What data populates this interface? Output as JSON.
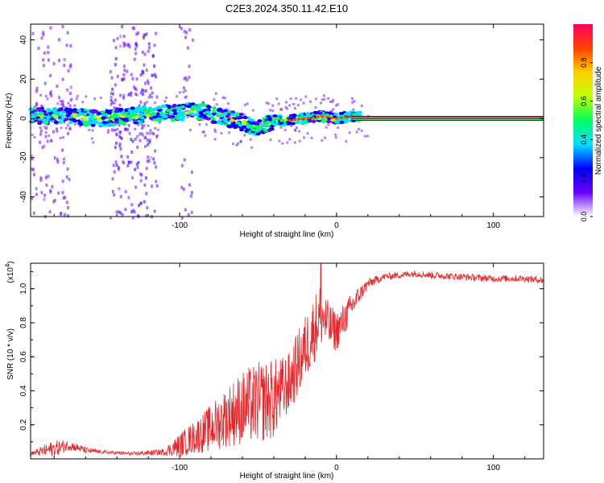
{
  "title": "C2E3.2024.350.11.42.E10",
  "chart_data": [
    {
      "type": "heatmap",
      "title": "C2E3.2024.350.11.42.E10",
      "xlabel": "Height of straight line (km)",
      "ylabel": "Frequency (Hz)",
      "xlim": [
        -195,
        132
      ],
      "ylim": [
        -50,
        48
      ],
      "xticks": [
        -100,
        0,
        100
      ],
      "yticks": [
        -40,
        -20,
        0,
        20,
        40
      ],
      "trace_center_hz": [
        {
          "x": -195,
          "y": 1
        },
        {
          "x": -170,
          "y": 1
        },
        {
          "x": -150,
          "y": 0
        },
        {
          "x": -120,
          "y": 2
        },
        {
          "x": -100,
          "y": 3
        },
        {
          "x": -90,
          "y": 4
        },
        {
          "x": -80,
          "y": 2
        },
        {
          "x": -70,
          "y": 0
        },
        {
          "x": -60,
          "y": -2
        },
        {
          "x": -50,
          "y": -5
        },
        {
          "x": -45,
          "y": -3
        },
        {
          "x": -40,
          "y": -1
        },
        {
          "x": -30,
          "y": -1
        },
        {
          "x": -20,
          "y": 0
        },
        {
          "x": -10,
          "y": 1
        },
        {
          "x": 0,
          "y": 0
        },
        {
          "x": 10,
          "y": 1
        },
        {
          "x": 132,
          "y": 0
        }
      ],
      "broadband_bands_km": [
        [
          -195,
          -170
        ],
        [
          -145,
          -115
        ],
        [
          -100,
          -92
        ]
      ],
      "colorbar": {
        "label": "Normalized spectral amplitude",
        "range": [
          0.0,
          1.0
        ],
        "ticks": [
          "0.0",
          "0.2",
          "0.4",
          "0.6",
          "0.8"
        ],
        "colors": [
          "#ffffff",
          "#6a00ff",
          "#0000ff",
          "#00e0ff",
          "#00ff60",
          "#c0ff00",
          "#ffd000",
          "#ff4000",
          "#ff0060"
        ]
      }
    },
    {
      "type": "line",
      "xlabel": "Height of straight line (km)",
      "ylabel": "SNR (10 * v/v)",
      "y_multiplier": "(x10",
      "y_multiplier_exp": "4",
      "y_multiplier_close": ")",
      "xlim": [
        -195,
        132
      ],
      "ylim": [
        0.0,
        1.15
      ],
      "xticks": [
        -100,
        0,
        100
      ],
      "yticks": [
        0.2,
        0.4,
        0.6,
        0.8,
        1.0
      ],
      "series": [
        {
          "name": "SNR",
          "color": "#e8262a",
          "x": [
            -195,
            -180,
            -170,
            -160,
            -150,
            -130,
            -110,
            -100,
            -90,
            -80,
            -70,
            -60,
            -50,
            -40,
            -35,
            -30,
            -25,
            -20,
            -15,
            -10,
            -5,
            0,
            5,
            10,
            15,
            20,
            30,
            40,
            50,
            60,
            80,
            100,
            120,
            132
          ],
          "y": [
            0.03,
            0.06,
            0.08,
            0.05,
            0.04,
            0.03,
            0.04,
            0.08,
            0.13,
            0.18,
            0.25,
            0.3,
            0.33,
            0.35,
            0.4,
            0.45,
            0.55,
            0.65,
            0.75,
            0.85,
            0.78,
            0.75,
            0.82,
            0.9,
            0.97,
            1.03,
            1.07,
            1.08,
            1.09,
            1.08,
            1.07,
            1.06,
            1.06,
            1.05
          ],
          "noise": [
            0.01,
            0.05,
            0.03,
            0.02,
            0.01,
            0.01,
            0.02,
            0.07,
            0.1,
            0.14,
            0.18,
            0.22,
            0.24,
            0.24,
            0.2,
            0.18,
            0.2,
            0.2,
            0.2,
            0.2,
            0.14,
            0.12,
            0.1,
            0.08,
            0.05,
            0.03,
            0.02,
            0.02,
            0.02,
            0.02,
            0.02,
            0.02,
            0.02,
            0.02
          ],
          "peak": {
            "x": -10,
            "y": 1.15
          }
        }
      ]
    }
  ]
}
